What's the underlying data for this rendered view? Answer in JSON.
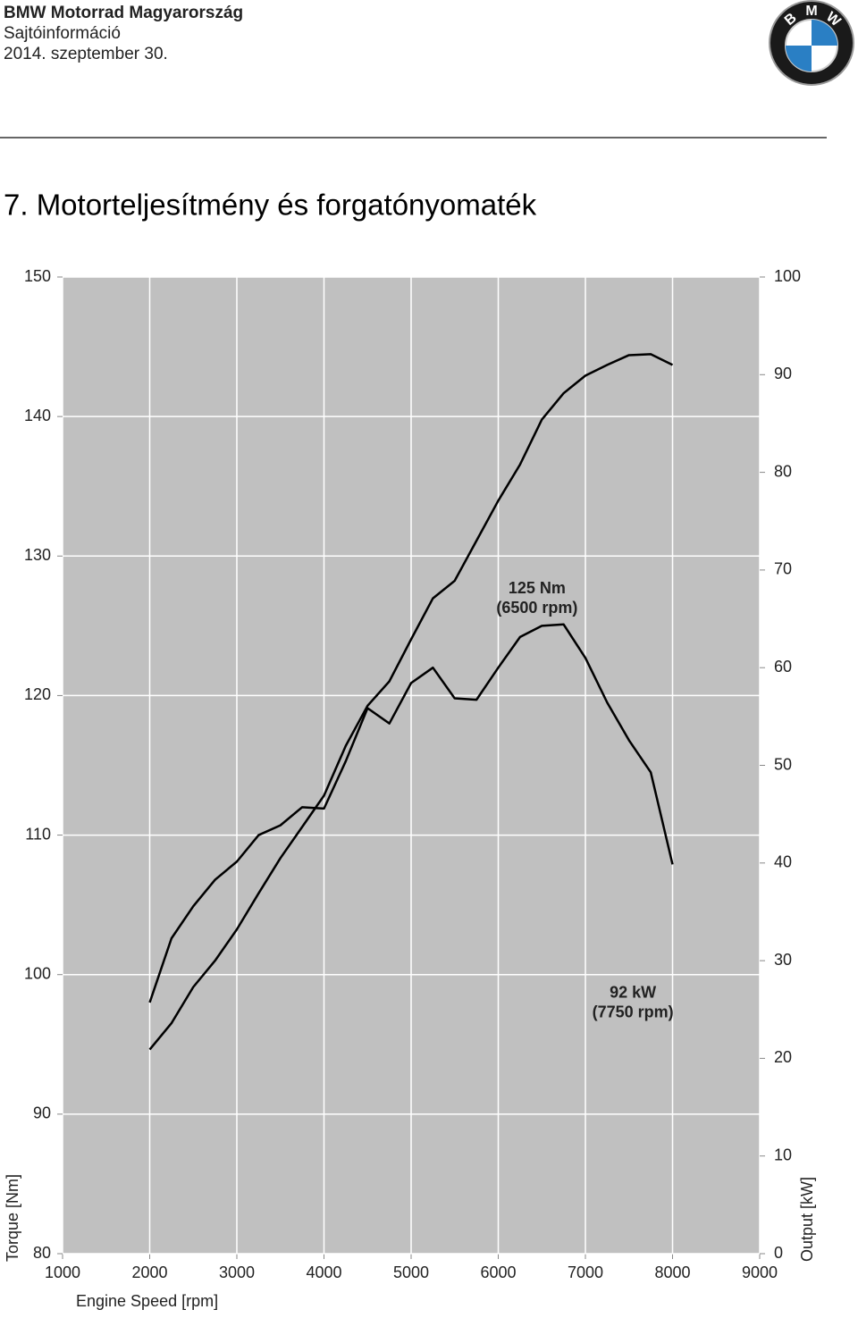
{
  "header": {
    "company": "BMW Motorrad Magyarország",
    "kind": "Sajtóinformáció",
    "date": "2014. szeptember 30.",
    "logo_letters": [
      "B",
      "M",
      "W"
    ]
  },
  "section_title": "7. Motorteljesítmény és forgatónyomaték",
  "chart_data": {
    "type": "line",
    "x": [
      2000,
      2250,
      2500,
      2750,
      3000,
      3250,
      3500,
      3750,
      4000,
      4250,
      4500,
      4750,
      5000,
      5250,
      5500,
      5750,
      6000,
      6250,
      6500,
      6750,
      7000,
      7250,
      7500,
      7750,
      8000
    ],
    "series": [
      {
        "name": "Torque",
        "color": "#000000",
        "values": [
          98,
          102.6,
          104.9,
          106.8,
          108.1,
          110,
          110.7,
          112,
          111.9,
          115.3,
          119.1,
          118,
          120.9,
          122,
          119.8,
          119.7,
          122,
          124.2,
          125,
          125.1,
          122.7,
          119.5,
          116.8,
          114.5,
          107.9
        ]
      },
      {
        "name": "Output",
        "color": "#000000",
        "axis": "y2",
        "values": [
          20.9,
          23.6,
          27.3,
          30,
          33.2,
          36.9,
          40.5,
          43.7,
          46.9,
          52,
          56.1,
          58.6,
          62.9,
          67.1,
          68.9,
          73,
          77.1,
          80.8,
          85.4,
          88.1,
          89.9,
          91,
          92,
          92.1,
          91
        ]
      }
    ],
    "xlim": [
      1000,
      9000
    ],
    "xticks": [
      1000,
      2000,
      3000,
      4000,
      5000,
      6000,
      7000,
      8000,
      9000
    ],
    "ylim": [
      80,
      150
    ],
    "yticks": [
      80,
      90,
      100,
      110,
      120,
      130,
      140,
      150
    ],
    "y2lim": [
      0,
      100
    ],
    "y2ticks": [
      0,
      10,
      20,
      30,
      40,
      50,
      60,
      70,
      80,
      90,
      100
    ],
    "xlabel": "Engine Speed [rpm]",
    "ylabel": "Torque [Nm]",
    "y2label": "Output [kW]",
    "grid": true,
    "background": "#c0c0c0",
    "annotations": [
      {
        "lines": [
          "92 kW",
          "(7750 rpm)"
        ],
        "x": 7750,
        "y": 98
      },
      {
        "lines": [
          "125 Nm",
          "(6500 rpm)"
        ],
        "x": 6650,
        "y": 127
      }
    ]
  }
}
